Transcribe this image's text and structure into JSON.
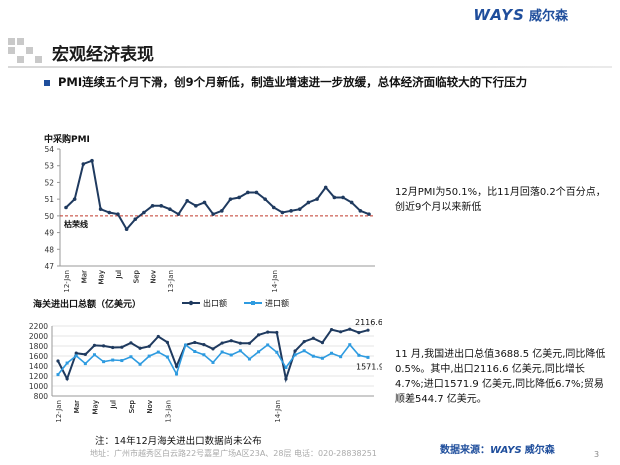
{
  "header": {
    "logo_latin": "WAYS",
    "logo_cn": "威尔森"
  },
  "page_title": "宏观经济表现",
  "headline": "PMI连续五个月下滑，创9个月新低，制造业增速进一步放缓，总体经济面临较大的下行压力",
  "pmi_note": "12月PMI为50.1%，比11月回落0.2个百分点，创近9个月以来新低",
  "trade_note": "11 月,我国进出口总值3688.5 亿美元,同比降低0.5%。其中,出口2116.6 亿美元,同比增长4.7%;进口1571.9 亿美元,同比降低6.7%;贸易顺差544.7 亿美元。",
  "footer": {
    "note": "注：14年12月海关进出口数据尚未公布",
    "address": "地址：广州市越秀区白云路22号嘉星广场A区23A、28层   电话：020-28838251",
    "source_label": "数据来源：",
    "source_latin": "WAYS",
    "source_cn": "威尔森",
    "page_number": "3"
  },
  "colors": {
    "brand": "#1f4e9c",
    "pmi_line": "#1f3a5f",
    "threshold": "#c0392b",
    "export": "#1f3a5f",
    "import": "#2e9be0"
  },
  "chart_data": [
    {
      "type": "line",
      "title": "中采购PMI",
      "x": [
        "12-Jan",
        "Feb",
        "Mar",
        "Apr",
        "May",
        "Jun",
        "Jul",
        "Aug",
        "Sep",
        "Oct",
        "Nov",
        "Dec",
        "13-Jan",
        "Feb",
        "Mar",
        "Apr",
        "May",
        "Jun",
        "Jul",
        "Aug",
        "Sep",
        "Oct",
        "Nov",
        "Dec",
        "14-Jan",
        "Feb",
        "Mar",
        "Apr",
        "May",
        "Jun",
        "Jul",
        "Aug",
        "Sep",
        "Oct",
        "Nov",
        "Dec"
      ],
      "x_tick_labels": [
        "12-Jan",
        "Mar",
        "May",
        "Jul",
        "Sep",
        "Nov",
        "13-Jan",
        "Mar",
        "May",
        "Jul",
        "Sep",
        "Nov",
        "14-Jan",
        "Mar",
        "May",
        "Jul",
        "Sep",
        "Nov"
      ],
      "series": [
        {
          "values": [
            50.5,
            51.0,
            53.1,
            53.3,
            50.4,
            50.2,
            50.1,
            49.2,
            49.8,
            50.2,
            50.6,
            50.6,
            50.4,
            50.1,
            50.9,
            50.6,
            50.8,
            50.1,
            50.3,
            51.0,
            51.1,
            51.4,
            51.4,
            51.0,
            50.5,
            50.2,
            50.3,
            50.4,
            50.8,
            51.0,
            51.7,
            51.1,
            51.1,
            50.8,
            50.3,
            50.1
          ]
        }
      ],
      "threshold": {
        "value": 50,
        "label": "枯荣线"
      },
      "ylim": [
        47,
        54
      ],
      "yticks": [
        47,
        48,
        49,
        50,
        51,
        52,
        53,
        54
      ],
      "grid": false,
      "legend": "none"
    },
    {
      "type": "line",
      "title": "海关进出口总额（亿美元）",
      "x": [
        "12-Jan",
        "Feb",
        "Mar",
        "Apr",
        "May",
        "Jun",
        "Jul",
        "Aug",
        "Sep",
        "Oct",
        "Nov",
        "Dec",
        "13-Jan",
        "Feb",
        "Mar",
        "Apr",
        "May",
        "Jun",
        "Jul",
        "Aug",
        "Sep",
        "Oct",
        "Nov",
        "Dec",
        "14-Jan",
        "Feb",
        "Mar",
        "Apr",
        "May",
        "Jun",
        "Jul",
        "Aug",
        "Sep",
        "Oct",
        "Nov"
      ],
      "x_tick_labels": [
        "12-Jan",
        "Mar",
        "May",
        "Jul",
        "Sep",
        "Nov",
        "13-Jan",
        "Mar",
        "May",
        "Jul",
        "Sep",
        "Nov",
        "14-Jan",
        "Mar",
        "May",
        "Jul",
        "Sep",
        "Nov"
      ],
      "series": [
        {
          "name": "出口额",
          "values": [
            1500,
            1144,
            1657,
            1632,
            1812,
            1803,
            1770,
            1776,
            1863,
            1755,
            1794,
            1990,
            1873,
            1393,
            1821,
            1871,
            1828,
            1743,
            1859,
            1906,
            1856,
            1854,
            2022,
            2077,
            2071,
            1141,
            1701,
            1888,
            1955,
            1868,
            2128,
            2084,
            2136,
            2068,
            2116.6
          ]
        },
        {
          "name": "进口额",
          "values": [
            1228,
            1459,
            1604,
            1448,
            1625,
            1487,
            1519,
            1509,
            1585,
            1435,
            1598,
            1678,
            1581,
            1241,
            1820,
            1690,
            1625,
            1471,
            1680,
            1620,
            1704,
            1540,
            1684,
            1821,
            1675,
            1370,
            1623,
            1705,
            1596,
            1555,
            1655,
            1586,
            1826,
            1614,
            1571.9
          ]
        }
      ],
      "annotations": [
        "2116.6",
        "1571.9"
      ],
      "ylim": [
        800,
        2200
      ],
      "yticks": [
        800,
        1000,
        1200,
        1400,
        1600,
        1800,
        2000,
        2200
      ],
      "grid": true,
      "legend": "top"
    }
  ]
}
